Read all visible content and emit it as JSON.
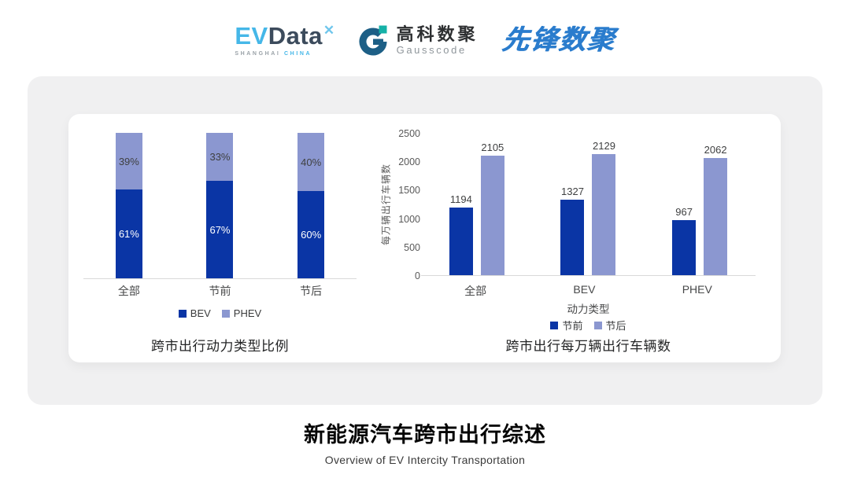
{
  "header": {
    "logos": {
      "evdata": {
        "ev": "EV",
        "data": "Data",
        "spark": "✕",
        "sub_left": "SHANGHAI",
        "sub_right": "CHINA"
      },
      "gausscode": {
        "cn": "高科数聚",
        "en": "Gausscode"
      },
      "xianfeng": {
        "text": "先锋数聚"
      }
    }
  },
  "colors": {
    "bev_dark": "#0a35a5",
    "phev_light": "#8b97d0",
    "panel_bg": "#f0f0f1",
    "axis_line": "#d9d9d9"
  },
  "chart_data": [
    {
      "type": "bar",
      "subtype": "stacked-100",
      "title": "跨市出行动力类型比例",
      "categories": [
        "全部",
        "节前",
        "节后"
      ],
      "series": [
        {
          "name": "BEV",
          "color": "#0a35a5",
          "values": [
            61,
            67,
            60
          ],
          "labels": [
            "61%",
            "67%",
            "60%"
          ]
        },
        {
          "name": "PHEV",
          "color": "#8b97d0",
          "values": [
            39,
            33,
            40
          ],
          "labels": [
            "39%",
            "33%",
            "40%"
          ]
        }
      ],
      "ylim": [
        0,
        100
      ],
      "grid": false,
      "legend_position": "bottom"
    },
    {
      "type": "bar",
      "subtype": "grouped",
      "title": "跨市出行每万辆出行车辆数",
      "categories": [
        "全部",
        "BEV",
        "PHEV"
      ],
      "xlabel": "动力类型",
      "ylabel": "每万辆出行车辆数",
      "ylim": [
        0,
        2500
      ],
      "yticks": [
        "0",
        "500",
        "1000",
        "1500",
        "2000",
        "2500"
      ],
      "grid": false,
      "series": [
        {
          "name": "节前",
          "color": "#0a35a5",
          "values": [
            1194,
            1327,
            967
          ]
        },
        {
          "name": "节后",
          "color": "#8b97d0",
          "values": [
            2105,
            2129,
            2062
          ]
        }
      ],
      "legend_position": "bottom"
    }
  ],
  "footer": {
    "title": "新能源汽车跨市出行综述",
    "subtitle": "Overview of EV Intercity Transportation"
  }
}
